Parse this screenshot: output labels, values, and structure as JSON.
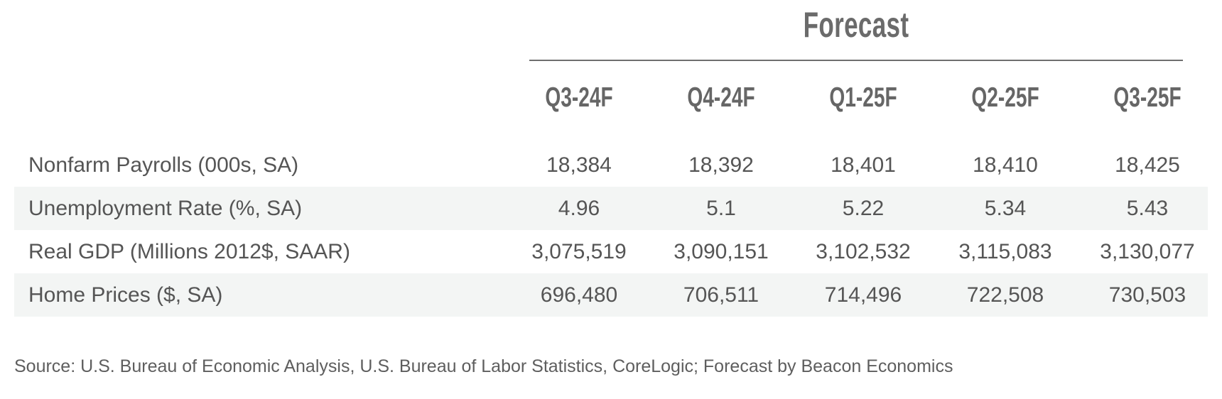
{
  "chart_data": {
    "type": "table",
    "title": "Forecast",
    "columns": [
      "Q3-24F",
      "Q4-24F",
      "Q1-25F",
      "Q2-25F",
      "Q3-25F"
    ],
    "rows": [
      {
        "label": "Nonfarm Payrolls (000s, SA)",
        "values": [
          "18,384",
          "18,392",
          "18,401",
          "18,410",
          "18,425"
        ]
      },
      {
        "label": "Unemployment Rate (%, SA)",
        "values": [
          "4.96",
          "5.1",
          "5.22",
          "5.34",
          "5.43"
        ]
      },
      {
        "label": "Real GDP (Millions 2012$, SAAR)",
        "values": [
          "3,075,519",
          "3,090,151",
          "3,102,532",
          "3,115,083",
          "3,130,077"
        ]
      },
      {
        "label": "Home Prices ($, SA)",
        "values": [
          "696,480",
          "706,511",
          "714,496",
          "722,508",
          "730,503"
        ]
      }
    ],
    "source": "Source: U.S. Bureau of Economic Analysis, U.S. Bureau of Labor Statistics, CoreLogic; Forecast by Beacon Economics"
  },
  "colors": {
    "header_text": "#666666",
    "body_text": "#555555",
    "rule": "#6f6f6f",
    "shaded_row": "#f3f5f4"
  }
}
